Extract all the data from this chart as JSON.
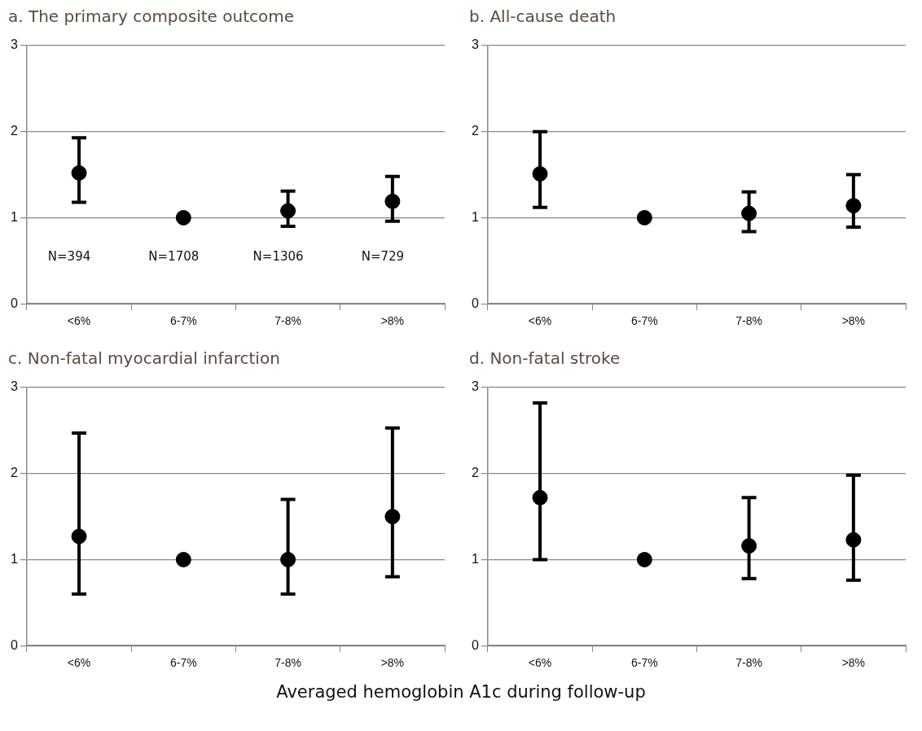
{
  "chart_data": [
    {
      "type": "scatter",
      "title": "a. The primary composite outcome",
      "categories": [
        "<6%",
        "6-7%",
        "7-8%",
        ">8%"
      ],
      "values": [
        1.52,
        1,
        1.08,
        1.19
      ],
      "errors": [
        [
          1.18,
          1.93
        ],
        null,
        [
          0.9,
          1.31
        ],
        [
          0.96,
          1.48
        ]
      ],
      "color": "#000000",
      "marker": "circle",
      "ylim": [
        0,
        3
      ],
      "yticks": [
        0,
        1,
        2,
        3
      ],
      "grid": "y",
      "annotations": [
        "N=394",
        "N=1708",
        "N=1306",
        "N=729"
      ]
    },
    {
      "type": "scatter",
      "title": "b. All-cause death",
      "categories": [
        "<6%",
        "6-7%",
        "7-8%",
        ">8%"
      ],
      "values": [
        1.51,
        1,
        1.05,
        1.14
      ],
      "errors": [
        [
          1.12,
          2.0
        ],
        null,
        [
          0.84,
          1.3
        ],
        [
          0.89,
          1.5
        ]
      ],
      "color": "#000000",
      "marker": "circle",
      "ylim": [
        0,
        3
      ],
      "yticks": [
        0,
        1,
        2,
        3
      ],
      "grid": "y"
    },
    {
      "type": "scatter",
      "title": "c. Non-fatal myocardial infarction",
      "categories": [
        "<6%",
        "6-7%",
        "7-8%",
        ">8%"
      ],
      "values": [
        1.27,
        1,
        1.0,
        1.5
      ],
      "errors": [
        [
          0.6,
          2.47
        ],
        null,
        [
          0.6,
          1.7
        ],
        [
          0.8,
          2.53
        ]
      ],
      "color": "#000000",
      "marker": "circle",
      "ylim": [
        0,
        3
      ],
      "yticks": [
        0,
        1,
        2,
        3
      ],
      "grid": "y"
    },
    {
      "type": "scatter",
      "title": "d. Non-fatal stroke",
      "categories": [
        "<6%",
        "6-7%",
        "7-8%",
        ">8%"
      ],
      "values": [
        1.72,
        1,
        1.16,
        1.23
      ],
      "errors": [
        [
          1.0,
          2.82
        ],
        null,
        [
          0.78,
          1.72
        ],
        [
          0.76,
          1.98
        ]
      ],
      "color": "#000000",
      "marker": "circle",
      "ylim": [
        0,
        3
      ],
      "yticks": [
        0,
        1,
        2,
        3
      ],
      "grid": "y",
      "xlabel": "Averaged hemoglobin A1c during follow-up"
    }
  ]
}
